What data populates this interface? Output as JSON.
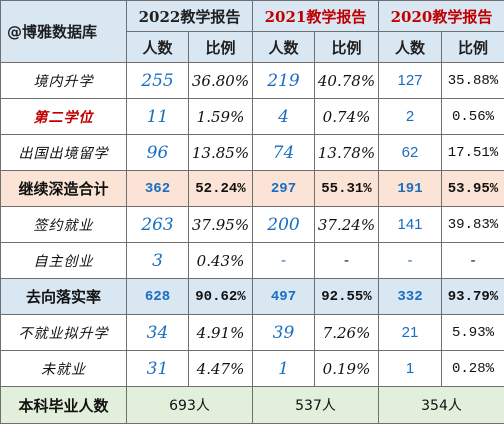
{
  "header": {
    "brand": "@博雅数据库",
    "years": [
      "2022教学报告",
      "2021教学报告",
      "2020教学报告"
    ],
    "count_label": "人数",
    "ratio_label": "比例"
  },
  "rows": [
    {
      "label": "境内升学",
      "c2022": "255",
      "p2022": "36.80%",
      "c2021": "219",
      "p2021": "40.78%",
      "c2020": "127",
      "p2020": "35.88%"
    },
    {
      "label": "第二学位",
      "c2022": "11",
      "p2022": "1.59%",
      "c2021": "4",
      "p2021": "0.74%",
      "c2020": "2",
      "p2020": "0.56%"
    },
    {
      "label": "出国出境留学",
      "c2022": "96",
      "p2022": "13.85%",
      "c2021": "74",
      "p2021": "13.78%",
      "c2020": "62",
      "p2020": "17.51%"
    },
    {
      "label": "继续深造合计",
      "c2022": "362",
      "p2022": "52.24%",
      "c2021": "297",
      "p2021": "55.31%",
      "c2020": "191",
      "p2020": "53.95%"
    },
    {
      "label": "签约就业",
      "c2022": "263",
      "p2022": "37.95%",
      "c2021": "200",
      "p2021": "37.24%",
      "c2020": "141",
      "p2020": "39.83%"
    },
    {
      "label": "自主创业",
      "c2022": "3",
      "p2022": "0.43%",
      "c2021": "-",
      "p2021": "-",
      "c2020": "-",
      "p2020": "-"
    },
    {
      "label": "去向落实率",
      "c2022": "628",
      "p2022": "90.62%",
      "c2021": "497",
      "p2021": "92.55%",
      "c2020": "332",
      "p2020": "93.79%"
    },
    {
      "label": "不就业拟升学",
      "c2022": "34",
      "p2022": "4.91%",
      "c2021": "39",
      "p2021": "7.26%",
      "c2020": "21",
      "p2020": "5.93%"
    },
    {
      "label": "未就业",
      "c2022": "31",
      "p2022": "4.47%",
      "c2021": "1",
      "p2021": "0.19%",
      "c2020": "1",
      "p2020": "0.28%"
    }
  ],
  "footer": {
    "label": "本科毕业人数",
    "t2022": "693人",
    "t2021": "537人",
    "t2020": "354人"
  },
  "colors": {
    "header_bg": "#d9e7f3",
    "highlight_bg": "#fbe4d5",
    "footer_bg": "#e2efda",
    "accent_red": "#c00000",
    "number_blue": "#1a6ec0"
  }
}
